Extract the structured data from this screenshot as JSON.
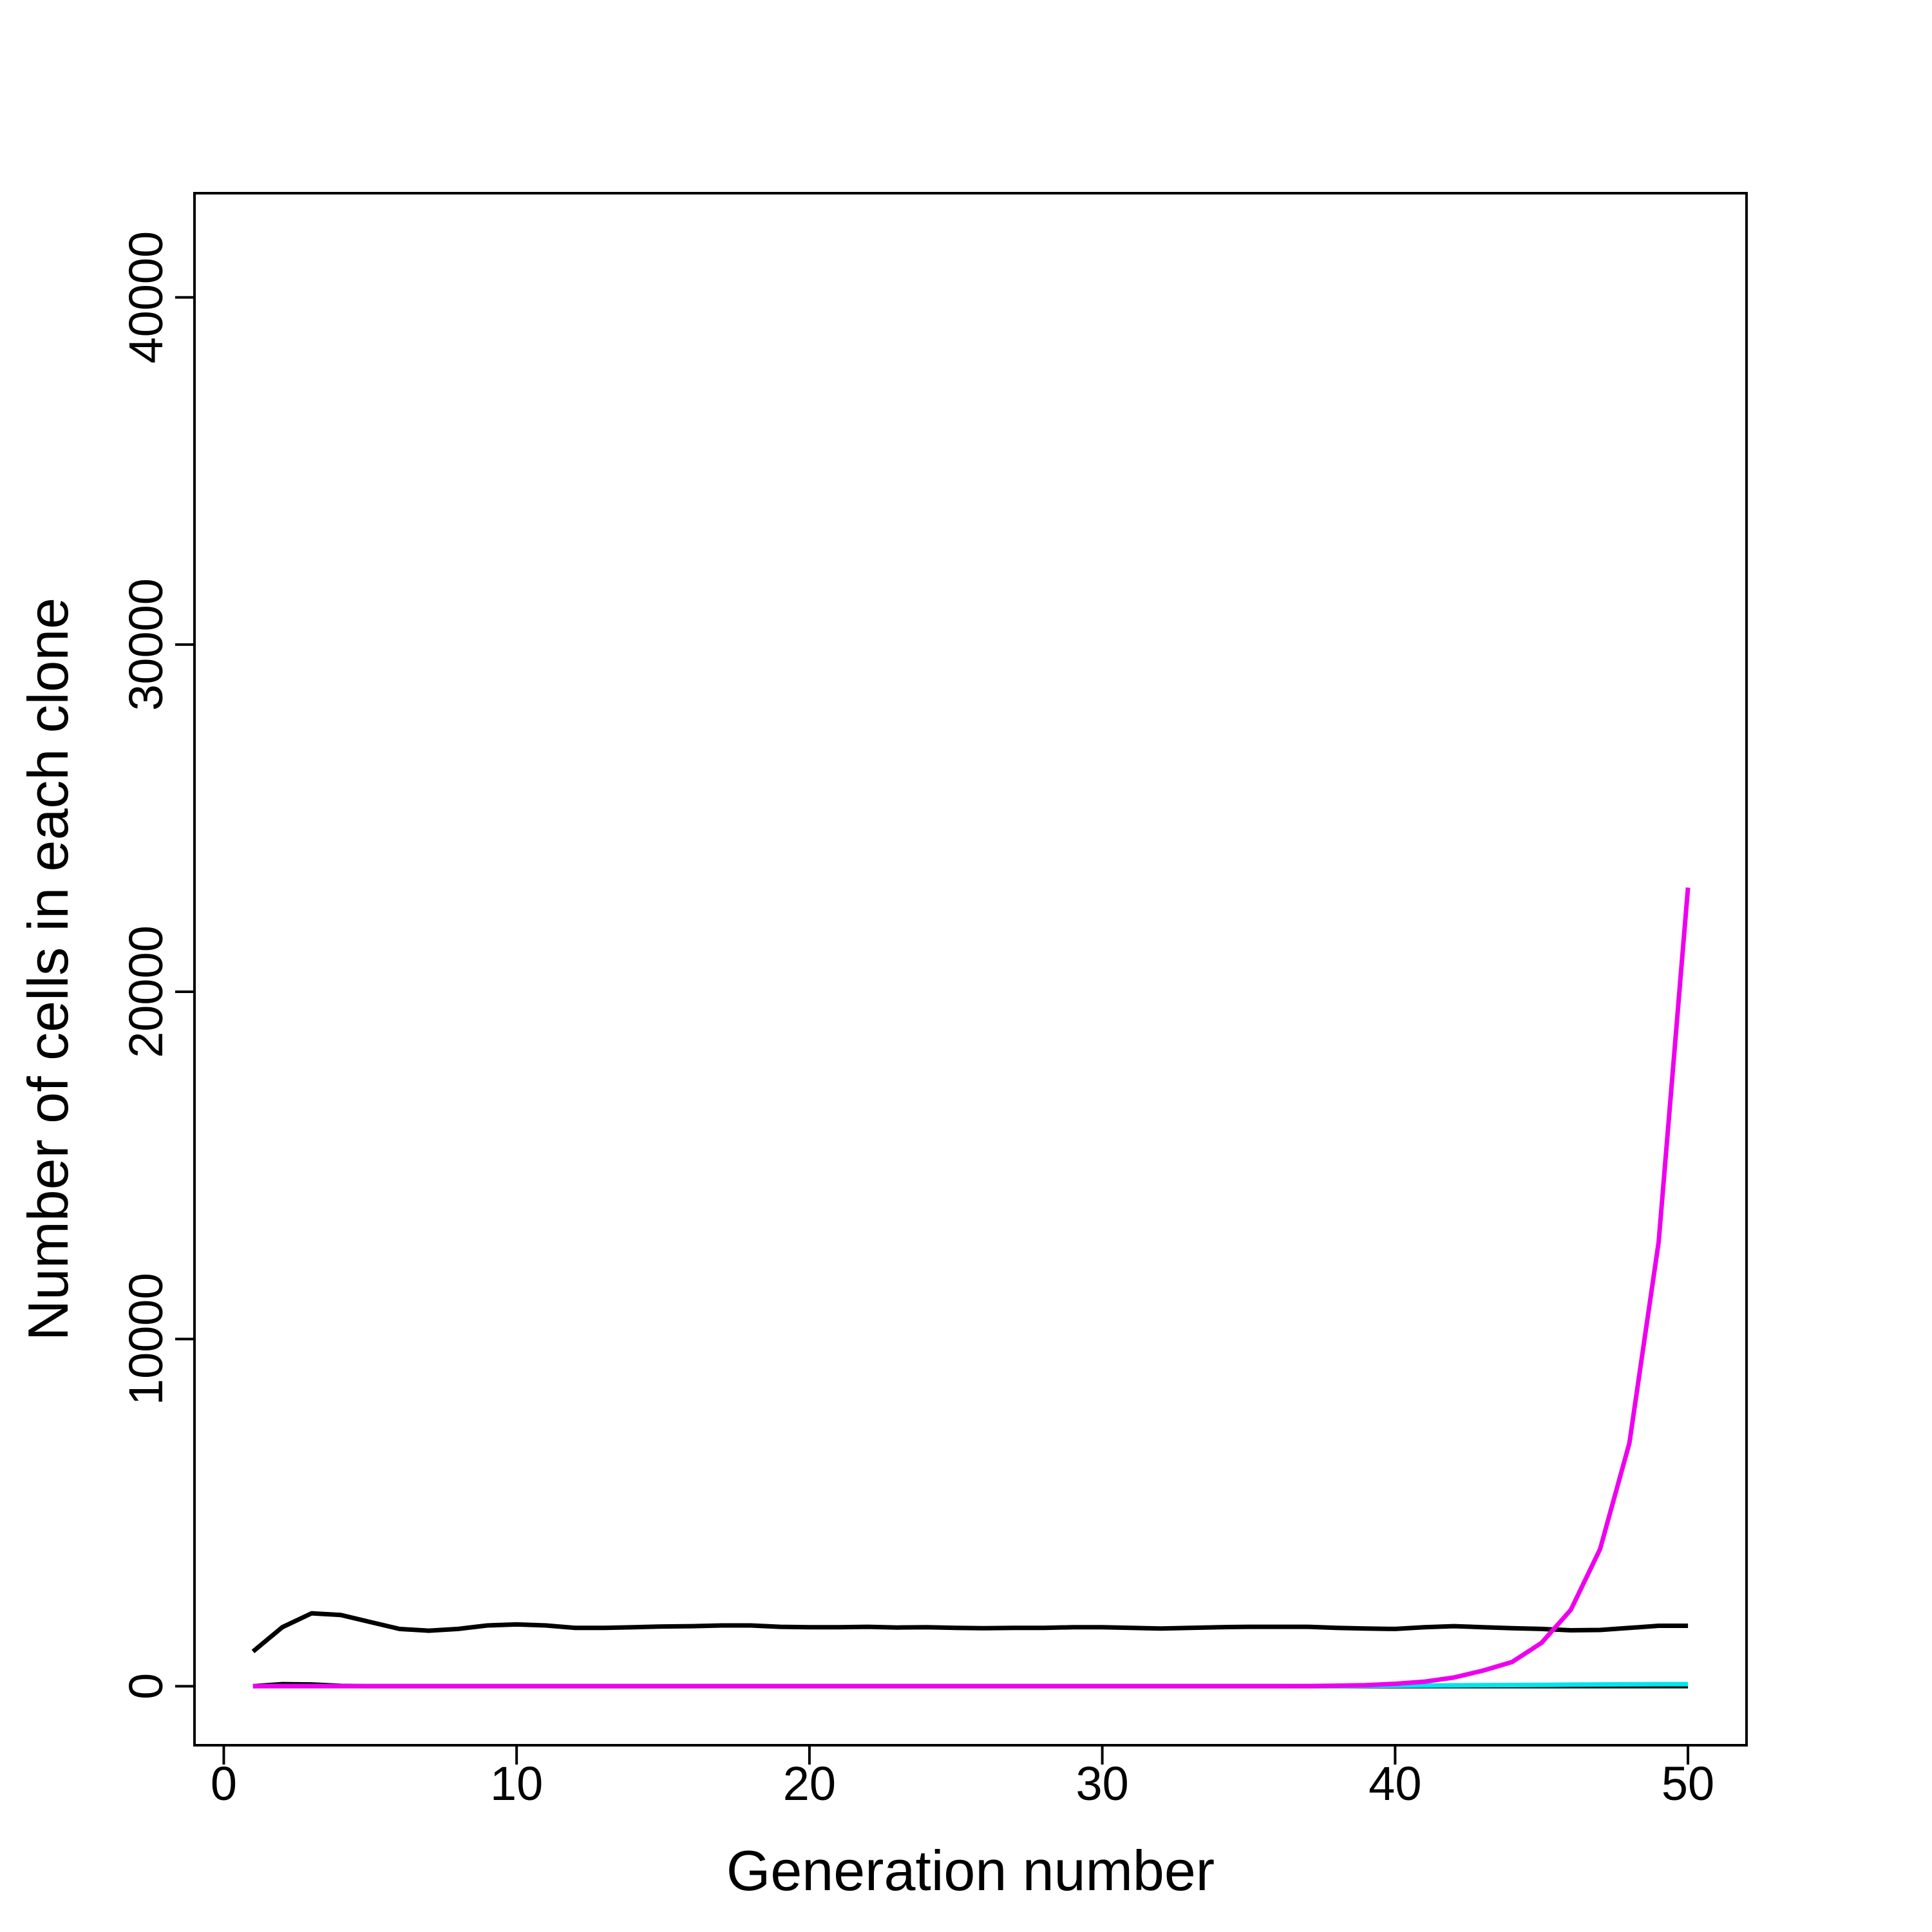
{
  "chart_data": {
    "type": "line",
    "title": "",
    "xlabel": "Generation number",
    "ylabel": "Number of cells in each clone",
    "xlim": [
      -1,
      52
    ],
    "ylim": [
      -1700,
      43000
    ],
    "x_ticks": [
      0,
      10,
      20,
      30,
      40,
      50
    ],
    "y_ticks": [
      0,
      10000,
      20000,
      30000,
      40000
    ],
    "grid": false,
    "legend": "none",
    "x": [
      1,
      2,
      3,
      4,
      5,
      6,
      7,
      8,
      9,
      10,
      11,
      12,
      13,
      14,
      15,
      16,
      17,
      18,
      19,
      20,
      21,
      22,
      23,
      24,
      25,
      26,
      27,
      28,
      29,
      30,
      31,
      32,
      33,
      34,
      35,
      36,
      37,
      38,
      39,
      40,
      41,
      42,
      43,
      44,
      45,
      46,
      47,
      48,
      49,
      50
    ],
    "series": [
      {
        "color": "#000000",
        "values": [
          1000,
          1700,
          2100,
          2050,
          1850,
          1650,
          1600,
          1650,
          1750,
          1780,
          1750,
          1680,
          1680,
          1700,
          1720,
          1730,
          1750,
          1750,
          1710,
          1700,
          1700,
          1710,
          1690,
          1700,
          1680,
          1670,
          1680,
          1680,
          1700,
          1700,
          1680,
          1660,
          1680,
          1700,
          1710,
          1710,
          1710,
          1680,
          1660,
          1650,
          1700,
          1730,
          1700,
          1670,
          1650,
          1610,
          1620,
          1680,
          1740,
          1740
        ]
      },
      {
        "color": "#000000",
        "values": [
          0,
          60,
          50,
          10,
          0,
          0,
          0,
          0,
          0,
          0,
          0,
          0,
          0,
          0,
          0,
          0,
          0,
          0,
          0,
          0,
          0,
          0,
          0,
          0,
          0,
          0,
          0,
          0,
          0,
          0,
          0,
          0,
          0,
          0,
          0,
          0,
          0,
          0,
          0,
          0,
          0,
          0,
          0,
          0,
          0,
          0,
          0,
          0,
          0,
          0
        ]
      },
      {
        "color": "#00e5ee",
        "values": [
          0,
          0,
          0,
          0,
          0,
          0,
          0,
          0,
          0,
          0,
          0,
          0,
          0,
          0,
          0,
          0,
          0,
          0,
          0,
          0,
          0,
          0,
          0,
          0,
          0,
          0,
          0,
          0,
          0,
          0,
          0,
          0,
          0,
          0,
          0,
          0,
          0,
          5,
          10,
          15,
          20,
          25,
          30,
          35,
          40,
          45,
          50,
          55,
          60,
          60
        ]
      },
      {
        "color": "#ee00ee",
        "values": [
          0,
          0,
          0,
          0,
          0,
          0,
          0,
          0,
          0,
          0,
          0,
          0,
          0,
          0,
          0,
          0,
          0,
          0,
          0,
          0,
          0,
          0,
          0,
          0,
          0,
          0,
          0,
          0,
          0,
          0,
          0,
          0,
          0,
          0,
          0,
          0,
          5,
          15,
          30,
          70,
          130,
          250,
          450,
          700,
          1250,
          2200,
          3950,
          7000,
          12800,
          23000
        ]
      }
    ]
  }
}
